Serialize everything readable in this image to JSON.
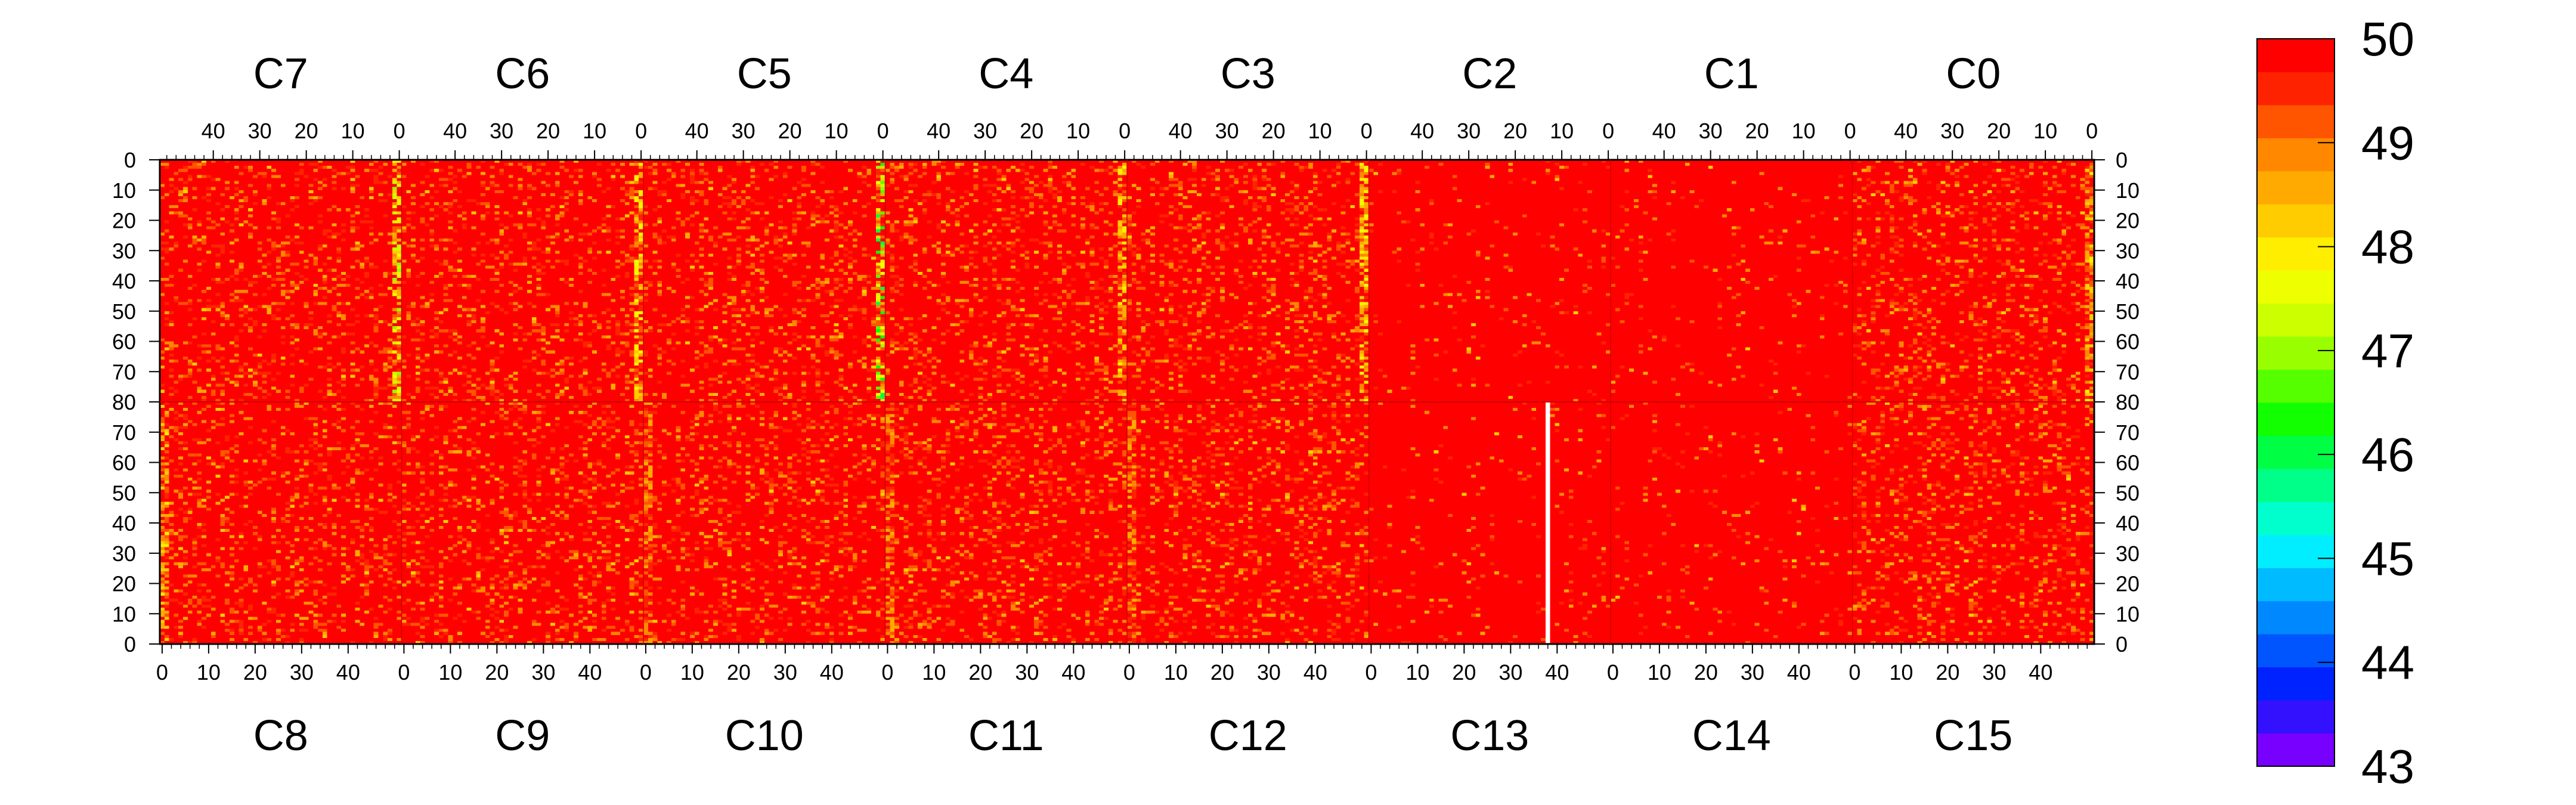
{
  "chart_data": {
    "type": "heatmap",
    "title": "",
    "xlabel": "",
    "ylabel": "",
    "chips_top": [
      "C7",
      "C6",
      "C5",
      "C4",
      "C3",
      "C2",
      "C1",
      "C0"
    ],
    "chips_bottom": [
      "C8",
      "C9",
      "C10",
      "C11",
      "C12",
      "C13",
      "C14",
      "C15"
    ],
    "columns_per_chip": 52,
    "rows_per_chip": 80,
    "x_ticks": [
      0,
      10,
      20,
      30,
      40
    ],
    "y_ticks": [
      0,
      10,
      20,
      30,
      40,
      50,
      60,
      70,
      80
    ],
    "z_range": [
      43,
      50
    ],
    "colorbar_ticks": [
      50,
      49,
      48,
      47,
      46,
      45,
      44,
      43
    ],
    "baseline_value": 50,
    "masked_regions": [
      {
        "chip": "C13",
        "column": 38,
        "rows": [
          0,
          80
        ],
        "note": "empty column"
      }
    ],
    "hot_columns": [
      {
        "chip": "C7",
        "column": 0,
        "min_value": 47
      },
      {
        "chip": "C6",
        "column": 0,
        "min_value": 47.5
      },
      {
        "chip": "C5",
        "column": 0,
        "min_value": 46
      },
      {
        "chip": "C4",
        "column": 0,
        "min_value": 48
      },
      {
        "chip": "C3",
        "column": 0,
        "min_value": 47.5
      },
      {
        "chip": "C0",
        "column": 0,
        "min_value": 48
      },
      {
        "chip": "C8",
        "column": 0,
        "min_value": 48
      },
      {
        "chip": "C10",
        "column": 0,
        "min_value": 48.5
      },
      {
        "chip": "C11",
        "column": 0,
        "min_value": 48.5
      },
      {
        "chip": "C12",
        "column": 0,
        "min_value": 48.5
      }
    ],
    "quiet_chips": [
      "C2",
      "C1",
      "C14",
      "C13"
    ]
  },
  "colors": {
    "palette": [
      "#7700ff",
      "#3311ff",
      "#0022ff",
      "#0055ff",
      "#0088ff",
      "#00bbff",
      "#00eeff",
      "#00ffcc",
      "#00ff88",
      "#00ff44",
      "#11ff00",
      "#55ff00",
      "#99ff00",
      "#ccff00",
      "#eeff00",
      "#ffee00",
      "#ffcc00",
      "#ffaa00",
      "#ff8800",
      "#ff5500",
      "#ff2200",
      "#ff0000"
    ],
    "background": "#ffffff",
    "gap": "#ffffff"
  }
}
